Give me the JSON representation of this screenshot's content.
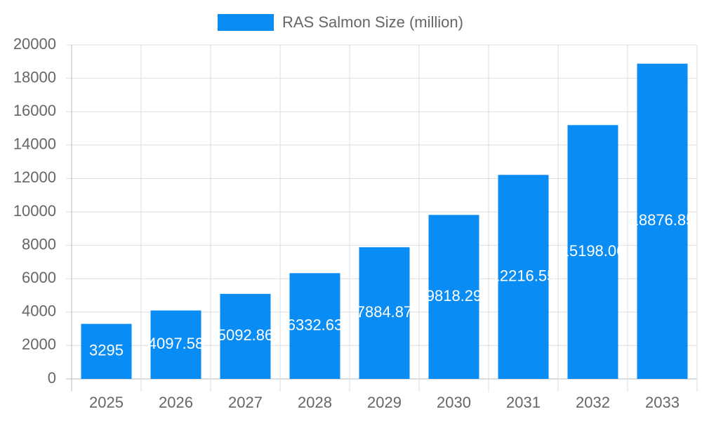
{
  "chart_data": {
    "type": "bar",
    "categories": [
      "2025",
      "2026",
      "2027",
      "2028",
      "2029",
      "2030",
      "2031",
      "2032",
      "2033"
    ],
    "series": [
      {
        "name": "RAS Salmon Size (million)",
        "color": "#0a8cf5",
        "values": [
          3295,
          4097.58,
          5092.86,
          6332.63,
          7884.87,
          9818.29,
          12216.55,
          15198.06,
          18876.85
        ]
      }
    ],
    "ylim": [
      0,
      20000
    ],
    "yticks": [
      0,
      2000,
      4000,
      6000,
      8000,
      10000,
      12000,
      14000,
      16000,
      18000,
      20000
    ],
    "grid": true,
    "legend": "top",
    "show_value_labels": true
  }
}
